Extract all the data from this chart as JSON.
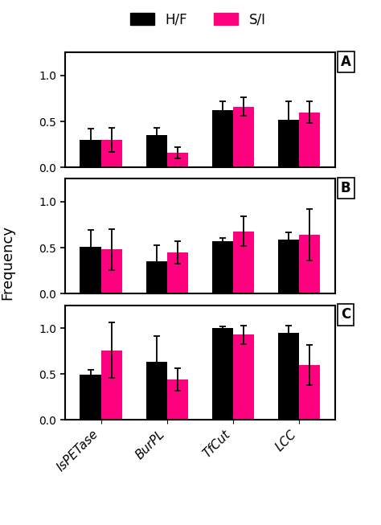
{
  "panels": [
    {
      "label": "A",
      "hf_values": [
        0.3,
        0.35,
        0.62,
        0.52
      ],
      "si_values": [
        0.3,
        0.16,
        0.66,
        0.6
      ],
      "hf_errors": [
        0.12,
        0.08,
        0.1,
        0.2
      ],
      "si_errors": [
        0.13,
        0.06,
        0.1,
        0.12
      ]
    },
    {
      "label": "B",
      "hf_values": [
        0.51,
        0.35,
        0.57,
        0.59
      ],
      "si_values": [
        0.48,
        0.45,
        0.68,
        0.64
      ],
      "hf_errors": [
        0.18,
        0.18,
        0.04,
        0.08
      ],
      "si_errors": [
        0.22,
        0.12,
        0.16,
        0.28
      ]
    },
    {
      "label": "C",
      "hf_values": [
        0.49,
        0.63,
        1.0,
        0.95
      ],
      "si_values": [
        0.76,
        0.44,
        0.93,
        0.6
      ],
      "hf_errors": [
        0.06,
        0.28,
        0.02,
        0.08
      ],
      "si_errors": [
        0.3,
        0.12,
        0.1,
        0.22
      ]
    }
  ],
  "categories": [
    "IsPETase",
    "BurPL",
    "TfCut",
    "LCC"
  ],
  "hf_color": "#000000",
  "si_color": "#FF007F",
  "ylabel": "Frequency",
  "yticks": [
    0.0,
    0.5,
    1.0
  ],
  "legend_labels": [
    "H/F",
    "S/I"
  ],
  "bar_width": 0.32,
  "figsize": [
    4.74,
    6.53
  ],
  "dpi": 100
}
